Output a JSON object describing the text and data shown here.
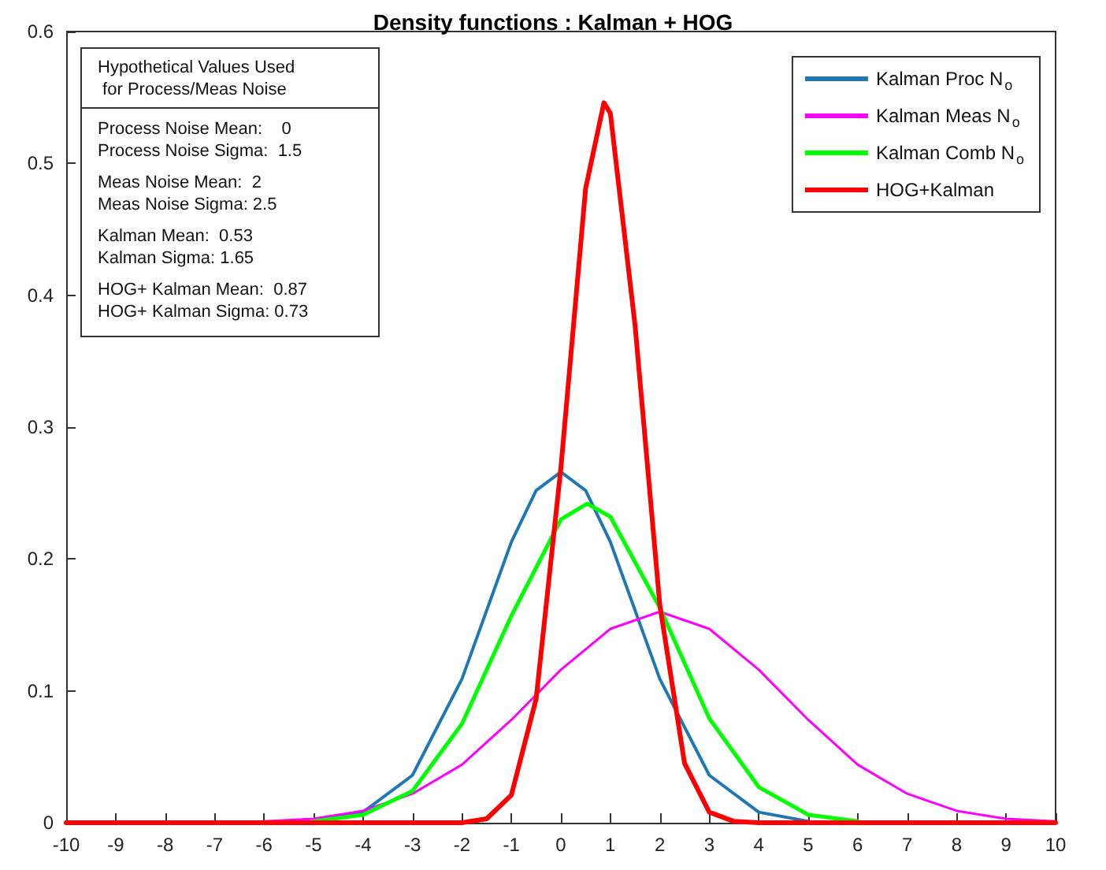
{
  "chart_data": {
    "type": "line",
    "title": "Density functions : Kalman + HOG",
    "xlim": [
      -10,
      10
    ],
    "xticks": [
      -10,
      -9,
      -8,
      -7,
      -6,
      -5,
      -4,
      -3,
      -2,
      -1,
      0,
      1,
      2,
      3,
      4,
      5,
      6,
      7,
      8,
      9,
      10
    ],
    "ylim": [
      0,
      0.6
    ],
    "yticks": [
      0,
      0.1,
      0.2,
      0.3,
      0.4,
      0.5,
      0.6
    ],
    "grid": false,
    "legend": "top right",
    "marker": "none",
    "line_style": "solid",
    "annotations": [
      "Hypothetical Values Used",
      " for Process/Meas Noise",
      "Process Noise Mean:    0",
      "Process Noise Sigma:  1.5",
      "Meas Noise Mean:  2",
      "Meas Noise Sigma: 2.5",
      "Kalman Mean:  0.53",
      "Kalman Sigma: 1.65",
      "HOG+ Kalman Mean:  0.87",
      "HOG+ Kalman Sigma: 0.73"
    ],
    "series": [
      {
        "name": "Kalman Proc N$_{o}$",
        "color": "#1f77b4",
        "x": [
          -5,
          -4,
          -3,
          -2,
          -1.5,
          -1,
          -0.5,
          0,
          0.5,
          1,
          1.5,
          2,
          3,
          4,
          5
        ],
        "values": [
          0.001,
          0.008,
          0.036,
          0.109,
          0.161,
          0.213,
          0.252,
          0.266,
          0.252,
          0.213,
          0.161,
          0.109,
          0.036,
          0.008,
          0.001
        ]
      },
      {
        "name": "Kalman Meas N$_{o}$",
        "color": "#ff00ff",
        "x": [
          -10,
          -6,
          -5,
          -4,
          -3,
          -2,
          -1,
          0,
          1,
          2,
          3,
          4,
          5,
          6,
          7,
          8,
          9,
          10
        ],
        "values": [
          0,
          0.001,
          0.003,
          0.009,
          0.022,
          0.044,
          0.078,
          0.116,
          0.147,
          0.16,
          0.147,
          0.116,
          0.078,
          0.044,
          0.022,
          0.009,
          0.003,
          0.001
        ]
      },
      {
        "name": "Kalman Comb N$_{o}$",
        "color": "#00ff00",
        "x": [
          -5,
          -4,
          -3,
          -2,
          -1,
          0,
          0.53,
          1,
          2,
          3,
          4,
          5,
          6
        ],
        "values": [
          0.001,
          0.006,
          0.024,
          0.075,
          0.157,
          0.23,
          0.242,
          0.232,
          0.163,
          0.079,
          0.027,
          0.006,
          0.001
        ]
      },
      {
        "name": "HOG+Kalman",
        "color": "#ff0000",
        "x": [
          -10,
          -3,
          -2,
          -1.5,
          -1,
          -0.5,
          0,
          0.5,
          0.87,
          1,
          1.5,
          2,
          2.5,
          3,
          3.5,
          4,
          10
        ],
        "values": [
          0,
          0,
          0,
          0.003,
          0.021,
          0.094,
          0.269,
          0.481,
          0.546,
          0.538,
          0.377,
          0.165,
          0.045,
          0.008,
          0.001,
          0,
          0
        ]
      }
    ]
  }
}
